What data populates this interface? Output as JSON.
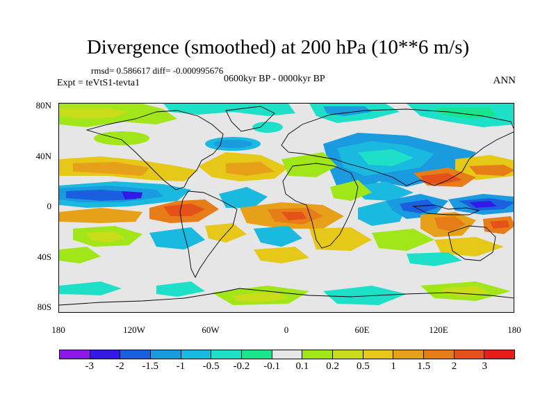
{
  "title": "Divergence (smoothed) at 200 hPa (10**6 m/s)",
  "stats": "rmsd= 0.586617 diff= -0.000995676",
  "period": "0600kyr BP - 0000kyr BP",
  "experiment": "Expt = teVtS1-tevta1",
  "season": "ANN",
  "lat_labels": [
    "80N",
    "40N",
    "0",
    "40S",
    "80S"
  ],
  "lon_labels": [
    "180",
    "120W",
    "60W",
    "0",
    "60E",
    "120E",
    "180"
  ],
  "colorbar": {
    "colors": [
      "#8c19e6",
      "#3219e6",
      "#1a5fe0",
      "#1a9be0",
      "#19b9e0",
      "#1ee0c8",
      "#19e68c",
      "#e6e6e6",
      "#a0e619",
      "#c8dc19",
      "#e6c819",
      "#e6a019",
      "#e67d19",
      "#e65019",
      "#e61e19"
    ],
    "labels": [
      "-3",
      "-2",
      "-1.5",
      "-1",
      "-0.5",
      "-0.2",
      "-0.1",
      "0.1",
      "0.2",
      "0.5",
      "1",
      "1.5",
      "2",
      "3"
    ]
  }
}
